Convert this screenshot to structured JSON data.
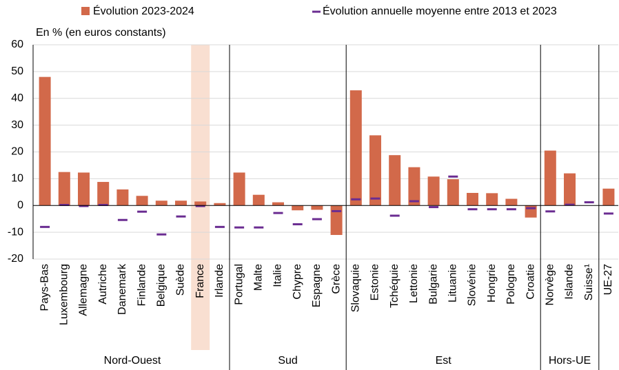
{
  "chart_data": {
    "type": "bar",
    "y_label": "En % (en euros constants)",
    "categories": [
      "Pays-Bas",
      "Luxembourg",
      "Allemagne",
      "Autriche",
      "Danemark",
      "Finlande",
      "Belgique",
      "Suède",
      "France",
      "Irlande",
      "Portugal",
      "Malte",
      "Italie",
      "Chypre",
      "Espagne",
      "Grèce",
      "Slovaquie",
      "Estonie",
      "Tchéquie",
      "Lettonie",
      "Bulgarie",
      "Lituanie",
      "Slovénie",
      "Hongrie",
      "Pologne",
      "Croatie",
      "Norvège",
      "Islande",
      "Suisse¹",
      "UE-27"
    ],
    "series": [
      {
        "name": "Évolution 2023-2024",
        "color": "#d2694a",
        "mark": "bar",
        "values": [
          48,
          12.5,
          12.3,
          8.8,
          6,
          3.6,
          1.8,
          1.8,
          1.5,
          0.9,
          12.3,
          4,
          1.2,
          -1.8,
          -1.6,
          -11,
          43,
          26.2,
          18.8,
          14.3,
          10.8,
          9.8,
          4.7,
          4.6,
          2.5,
          -4.5,
          20.5,
          12,
          null,
          6.3
        ]
      },
      {
        "name": "Évolution annuelle moyenne entre 2013 et 2023",
        "color": "#6a2c91",
        "mark": "dash",
        "values": [
          -8,
          0.2,
          -0.2,
          0.2,
          -5.4,
          -2.3,
          -10.8,
          -4.1,
          -0.2,
          -8,
          -8.2,
          -8.2,
          -2.8,
          -7,
          -5.1,
          -2.1,
          2.3,
          2.6,
          -3.8,
          1.6,
          -0.6,
          10.8,
          -1.4,
          -1.4,
          -1.4,
          -1,
          -2.2,
          0.3,
          1.2,
          -3
        ]
      }
    ],
    "groups": [
      {
        "name": "Nord-Ouest",
        "count": 10
      },
      {
        "name": "Sud",
        "count": 6
      },
      {
        "name": "Est",
        "count": 10
      },
      {
        "name": "Hors-UE",
        "count": 3
      }
    ],
    "highlight_index": 8,
    "highlight_color": "#f9dfd1",
    "ylim": [
      -20,
      60
    ],
    "yticks": [
      -20,
      -10,
      0,
      10,
      20,
      30,
      40,
      50,
      60
    ],
    "grid": true
  }
}
